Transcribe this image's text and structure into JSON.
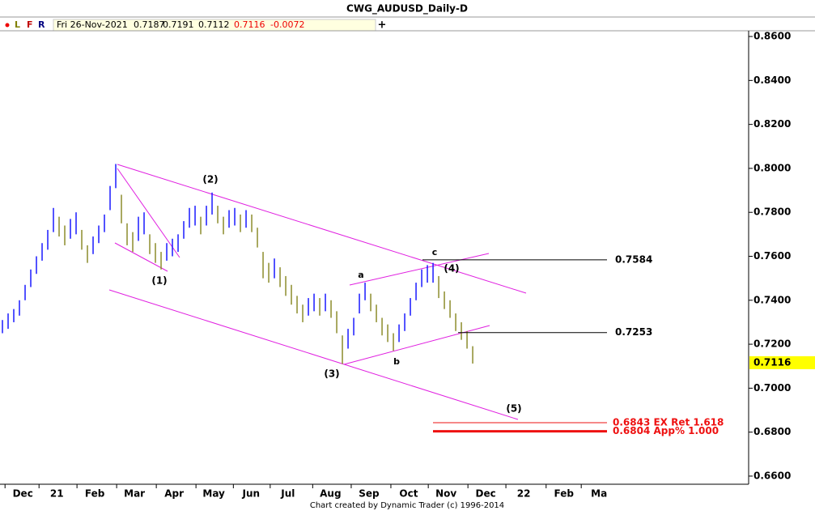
{
  "header": {
    "title": "CWG_AUDUSD_Daily-D",
    "buttons": [
      "L",
      "F",
      "R"
    ],
    "date": "Fri 26-Nov-2021",
    "open": "0.7187",
    "high": "0.7191",
    "low": "0.7112",
    "close": "0.7116",
    "change": "-0.0072",
    "add": "+"
  },
  "footer": "Chart created by Dynamic Trader  (c) 1996-2014",
  "chart_data": {
    "type": "ohlc",
    "up_color": "#1a1aff",
    "down_color": "#8c8c2c",
    "categories": [
      null,
      null,
      null,
      null,
      null,
      null,
      null,
      null,
      null,
      null,
      null,
      null,
      null,
      null,
      null,
      null,
      null,
      null,
      null,
      null,
      null,
      null,
      null,
      null,
      null,
      null,
      null,
      null,
      null,
      null,
      null,
      null,
      null,
      null,
      null,
      null,
      null,
      null,
      null,
      null,
      null,
      null,
      null,
      null,
      null,
      null,
      null,
      null,
      null,
      null,
      null,
      null,
      null,
      null,
      null,
      null,
      null,
      null,
      null,
      null,
      null,
      null,
      null,
      null,
      null,
      null,
      null,
      null,
      null,
      null,
      null,
      null,
      null,
      null,
      null,
      null,
      null,
      null,
      null,
      null,
      null,
      null,
      null,
      null
    ],
    "high": [
      0.731,
      0.734,
      0.736,
      0.74,
      0.747,
      0.754,
      0.76,
      0.766,
      0.772,
      0.782,
      0.778,
      0.774,
      0.777,
      0.78,
      0.772,
      0.765,
      0.769,
      0.774,
      0.779,
      0.792,
      0.802,
      0.788,
      0.775,
      0.771,
      0.778,
      0.78,
      0.77,
      0.766,
      0.762,
      0.766,
      0.768,
      0.77,
      0.776,
      0.782,
      0.783,
      0.778,
      0.783,
      0.789,
      0.783,
      0.778,
      0.781,
      0.782,
      0.779,
      0.781,
      0.779,
      0.773,
      0.762,
      0.757,
      0.759,
      0.755,
      0.751,
      0.747,
      0.742,
      0.738,
      0.741,
      0.743,
      0.741,
      0.743,
      0.74,
      0.735,
      0.724,
      0.727,
      0.732,
      0.743,
      0.748,
      0.743,
      0.738,
      0.732,
      0.729,
      0.725,
      0.729,
      0.734,
      0.741,
      0.748,
      0.754,
      0.756,
      0.757,
      0.751,
      0.744,
      0.74,
      0.734,
      0.73,
      0.726,
      0.7191
    ],
    "low": [
      0.725,
      0.727,
      0.73,
      0.733,
      0.74,
      0.746,
      0.752,
      0.758,
      0.763,
      0.771,
      0.769,
      0.765,
      0.768,
      0.77,
      0.763,
      0.757,
      0.761,
      0.766,
      0.771,
      0.781,
      0.791,
      0.775,
      0.765,
      0.762,
      0.767,
      0.77,
      0.761,
      0.757,
      0.754,
      0.758,
      0.76,
      0.762,
      0.768,
      0.773,
      0.774,
      0.77,
      0.774,
      0.779,
      0.775,
      0.77,
      0.773,
      0.774,
      0.771,
      0.773,
      0.771,
      0.764,
      0.75,
      0.748,
      0.75,
      0.746,
      0.742,
      0.738,
      0.734,
      0.73,
      0.733,
      0.735,
      0.733,
      0.735,
      0.732,
      0.725,
      0.711,
      0.718,
      0.724,
      0.734,
      0.74,
      0.735,
      0.73,
      0.724,
      0.721,
      0.717,
      0.721,
      0.726,
      0.733,
      0.74,
      0.746,
      0.748,
      0.748,
      0.741,
      0.736,
      0.732,
      0.726,
      0.722,
      0.718,
      0.7112
    ],
    "xlim": [
      -0.43,
      131.7
    ],
    "xticks": [
      {
        "value": 3.6,
        "label": "Dec"
      },
      {
        "value": 9.6,
        "label": "21"
      },
      {
        "value": 16.3,
        "label": "Feb"
      },
      {
        "value": 23.3,
        "label": "Mar"
      },
      {
        "value": 30.3,
        "label": "Apr"
      },
      {
        "value": 37.3,
        "label": "May"
      },
      {
        "value": 43.9,
        "label": "Jun"
      },
      {
        "value": 50.4,
        "label": "Jul"
      },
      {
        "value": 57.9,
        "label": "Aug"
      },
      {
        "value": 64.7,
        "label": "Sep"
      },
      {
        "value": 71.7,
        "label": "Oct"
      },
      {
        "value": 78.3,
        "label": "Nov"
      },
      {
        "value": 85.3,
        "label": "Dec"
      },
      {
        "value": 92,
        "label": "22"
      },
      {
        "value": 99.1,
        "label": "Feb"
      },
      {
        "value": 105.3,
        "label": "Ma"
      }
    ],
    "ylim": [
      0.6563,
      0.8626
    ],
    "yticks": [
      {
        "value": 0.66,
        "label": "0.6600"
      },
      {
        "value": 0.68,
        "label": "0.6800"
      },
      {
        "value": 0.7,
        "label": "0.7000"
      },
      {
        "value": 0.72,
        "label": "0.7200"
      },
      {
        "value": 0.74,
        "label": "0.7400"
      },
      {
        "value": 0.76,
        "label": "0.7600"
      },
      {
        "value": 0.78,
        "label": "0.7800"
      },
      {
        "value": 0.8,
        "label": "0.8000"
      },
      {
        "value": 0.82,
        "label": "0.8200"
      },
      {
        "value": 0.84,
        "label": "0.8400"
      },
      {
        "value": 0.86,
        "label": "0.8600"
      }
    ],
    "last": 0.7116,
    "last_color": "#ffff00",
    "levels": [
      {
        "value": 0.7584,
        "label": "0.7584",
        "color": "#000000"
      },
      {
        "value": 0.7253,
        "label": "0.7253",
        "color": "#000000"
      },
      {
        "value": 0.6843,
        "label": "0.6843 EX Ret 1.618",
        "color": "#ee1111"
      },
      {
        "value": 0.6804,
        "label": "0.6804 App% 1.000",
        "color": "#ee1111"
      }
    ],
    "wave_labels": [
      "(1)",
      "(2)",
      "(3)",
      "(4)",
      "(5)",
      "a",
      "b",
      "c"
    ]
  }
}
